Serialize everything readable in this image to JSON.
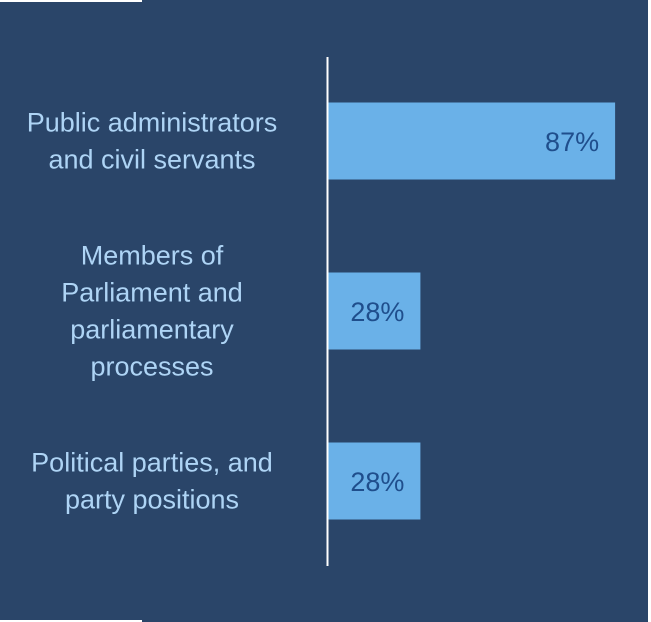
{
  "chart_data": {
    "type": "bar",
    "orientation": "horizontal",
    "categories": [
      [
        "Public administrators",
        "and civil servants"
      ],
      [
        "Members of",
        "Parliament and",
        "parliamentary",
        "processes"
      ],
      [
        "Political parties, and",
        "party positions"
      ]
    ],
    "values": [
      87,
      28,
      28
    ],
    "data_labels": [
      "87%",
      "28%",
      "28%"
    ],
    "xlim": [
      0,
      100
    ],
    "grid": false,
    "legend": "none"
  },
  "colors": {
    "background": "#ffffff",
    "panel": "#2a4569",
    "bar": "#6ab1e8",
    "axis": "#ffffff",
    "category_text": "#aed4f5",
    "value_text": "#1f4e8c"
  }
}
